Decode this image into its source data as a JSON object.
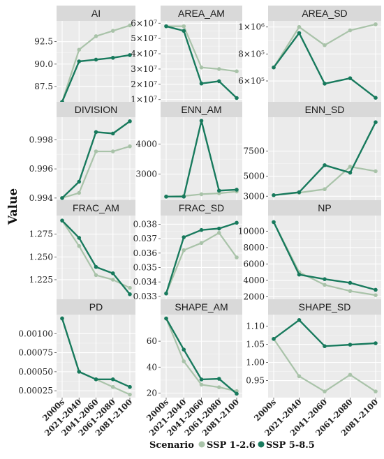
{
  "chart_data": {
    "type": "line",
    "ylabel": "Value",
    "legend": {
      "title": "Scenario",
      "placement": "bottom"
    },
    "grid": true,
    "categories": [
      "2000s",
      "2021-2040",
      "2041-2060",
      "2061-2080",
      "2081-2100"
    ],
    "series_meta": [
      {
        "name": "SSP 1-2.6",
        "color": "#a9c3a9"
      },
      {
        "name": "SSP 5-8.5",
        "color": "#187a5d"
      }
    ],
    "panels": [
      {
        "title": "AI",
        "ylim": [
          85.8,
          94.8
        ],
        "ticks": [
          87.5,
          90.0,
          92.5
        ],
        "tick_labels": [
          "87.5",
          "90.0",
          "92.5"
        ],
        "series": [
          [
            85.8,
            91.6,
            93.1,
            93.7,
            94.3
          ],
          [
            85.8,
            90.3,
            90.5,
            90.7,
            91.0
          ]
        ]
      },
      {
        "title": "AREA_AM",
        "ylim": [
          8500000,
          61500000
        ],
        "ticks": [
          10000000,
          20000000,
          30000000,
          40000000,
          50000000,
          60000000
        ],
        "tick_labels": [
          "1×10⁷",
          "2×10⁷",
          "3×10⁷",
          "4×10⁷",
          "5×10⁷",
          "6×10⁷"
        ],
        "series": [
          [
            58000000,
            58000000,
            31000000,
            30000000,
            28500000
          ],
          [
            58000000,
            55000000,
            20500000,
            22000000,
            11000000
          ]
        ]
      },
      {
        "title": "AREA_SD",
        "ylim": [
          445000,
          1045000
        ],
        "ticks": [
          600000,
          800000,
          1000000
        ],
        "tick_labels": [
          "6×10⁵",
          "8×10⁵",
          "1×10⁶"
        ],
        "series": [
          [
            700000,
            1000000,
            865000,
            975000,
            1020000
          ],
          [
            700000,
            955000,
            580000,
            620000,
            475000
          ]
        ]
      },
      {
        "title": "DIVISION",
        "ylim": [
          0.99385,
          0.99955
        ],
        "ticks": [
          0.994,
          0.996,
          0.998
        ],
        "tick_labels": [
          "0.994",
          "0.996",
          "0.998"
        ],
        "series": [
          [
            0.994,
            0.99435,
            0.9972,
            0.9972,
            0.99755
          ],
          [
            0.994,
            0.99512,
            0.99853,
            0.99843,
            0.99927
          ]
        ]
      },
      {
        "title": "ENN_AM",
        "ylim": [
          2130,
          4900
        ],
        "ticks": [
          3000,
          4000
        ],
        "tick_labels": [
          "3000",
          "4000"
        ],
        "series": [
          [
            2250,
            2270,
            2330,
            2360,
            2420
          ],
          [
            2250,
            2250,
            4780,
            2450,
            2480
          ]
        ]
      },
      {
        "title": "ENN_SD",
        "ylim": [
          2600,
          10900
        ],
        "ticks": [
          3000,
          5000,
          7500
        ],
        "tick_labels": [
          "3000",
          "5000",
          "7500"
        ],
        "series": [
          [
            3100,
            3350,
            3700,
            5950,
            5500
          ],
          [
            3100,
            3400,
            6100,
            5350,
            10400
          ]
        ]
      },
      {
        "title": "FRAC_AM",
        "ylim": [
          1.2035,
          1.2955
        ],
        "ticks": [
          1.225,
          1.25,
          1.275
        ],
        "tick_labels": [
          "1.225",
          "1.250",
          "1.275"
        ],
        "series": [
          [
            1.29,
            1.262,
            1.23,
            1.225,
            1.216
          ],
          [
            1.29,
            1.271,
            1.239,
            1.232,
            1.209
          ]
        ]
      },
      {
        "title": "FRAC_SD",
        "ylim": [
          0.0328,
          0.0386
        ],
        "ticks": [
          0.033,
          0.034,
          0.035,
          0.036,
          0.037,
          0.038
        ],
        "tick_labels": [
          "0.033",
          "0.034",
          "0.035",
          "0.036",
          "0.037",
          "0.038"
        ],
        "series": [
          [
            0.0332,
            0.0362,
            0.0367,
            0.0374,
            0.0357
          ],
          [
            0.0332,
            0.0371,
            0.0376,
            0.0377,
            0.0381
          ]
        ]
      },
      {
        "title": "NP",
        "ylim": [
          1700,
          11900
        ],
        "ticks": [
          2000,
          4000,
          6000,
          8000,
          10000
        ],
        "tick_labels": [
          "2000",
          "4000",
          "6000",
          "8000",
          "10000"
        ],
        "series": [
          [
            11100,
            5000,
            3450,
            2700,
            2200
          ],
          [
            11100,
            4700,
            4150,
            3700,
            2850
          ]
        ]
      },
      {
        "title": "PD",
        "ylim": [
          0.00016,
          0.00125
        ],
        "ticks": [
          0.00025,
          0.0005,
          0.00075,
          0.001
        ],
        "tick_labels": [
          "0.00025",
          "0.00050",
          "0.00075",
          "0.00100"
        ],
        "series": [
          [
            0.0012,
            0.0005,
            0.0004,
            0.0003,
            0.0002
          ],
          [
            0.0012,
            0.0005,
            0.0004,
            0.0004,
            0.0003
          ]
        ]
      },
      {
        "title": "SHAPE_AM",
        "ylim": [
          16.5,
          80.5
        ],
        "ticks": [
          20,
          40,
          60
        ],
        "tick_labels": [
          "20",
          "40",
          "60"
        ],
        "series": [
          [
            77.5,
            44.5,
            26.5,
            24.5,
            21.5
          ],
          [
            77.5,
            53.5,
            30.5,
            31.0,
            19.5
          ]
        ]
      },
      {
        "title": "SHAPE_SD",
        "ylim": [
          0.903,
          1.132
        ],
        "ticks": [
          0.95,
          1.0,
          1.05,
          1.1
        ],
        "tick_labels": [
          "0.95",
          "1.00",
          "1.05",
          "1.10"
        ],
        "series": [
          [
            1.065,
            0.962,
            0.92,
            0.966,
            0.92
          ],
          [
            1.065,
            1.117,
            1.045,
            1.049,
            1.053
          ]
        ]
      }
    ]
  }
}
